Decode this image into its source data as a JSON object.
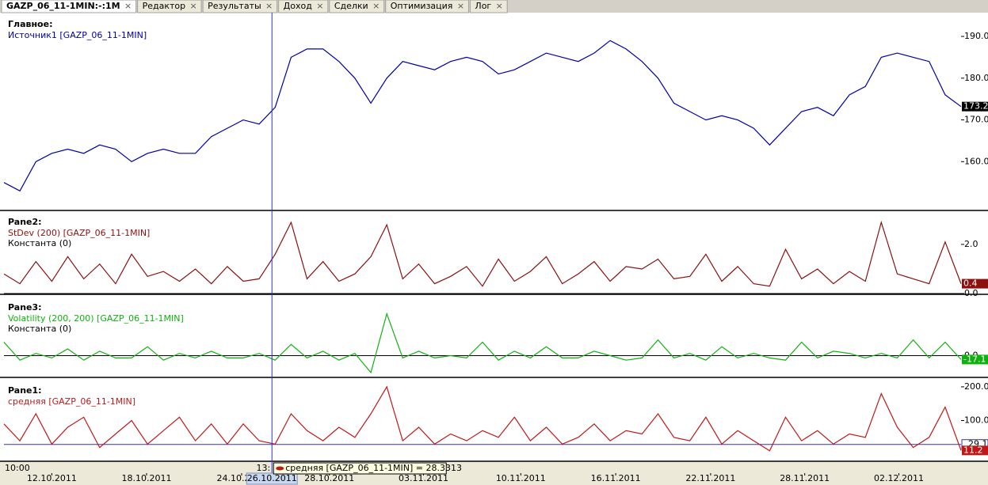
{
  "tabs": [
    "GAZP_06_11-1MIN:-:1M",
    "Редактор",
    "Результаты",
    "Доход",
    "Сделки",
    "Оптимизация",
    "Лог"
  ],
  "chart_data": [
    {
      "type": "line",
      "title": "Главное:",
      "series": [
        {
          "name": "Источник1 [GAZP_06_11-1MIN]",
          "color": "#0000a8",
          "values": [
            155,
            153,
            160,
            162,
            163,
            162,
            164,
            163,
            160,
            162,
            163,
            162,
            162,
            166,
            168,
            170,
            169,
            173,
            185,
            187,
            187,
            184,
            180,
            174,
            180,
            184,
            183,
            182,
            184,
            185,
            184,
            181,
            182,
            184,
            186,
            185,
            184,
            186,
            189,
            187,
            184,
            180,
            174,
            172,
            170,
            171,
            170,
            168,
            164,
            168,
            172,
            173,
            171,
            176,
            178,
            185,
            186,
            185,
            184,
            176,
            173.2
          ]
        }
      ],
      "ylim": [
        148.5,
        195.5
      ],
      "yticks": [
        {
          "value": 160,
          "label": "160.0"
        },
        {
          "value": 170,
          "label": "170.0"
        },
        {
          "value": 180,
          "label": "180.0"
        },
        {
          "value": 190,
          "label": "190.0"
        }
      ],
      "last_value": 173.2,
      "last_color": "#000000"
    },
    {
      "type": "line",
      "title": "Pane2:",
      "series": [
        {
          "name": "StDev (200) [GAZP_06_11-1MIN]",
          "color": "#8b1010",
          "values": [
            0.8,
            0.4,
            1.3,
            0.5,
            1.5,
            0.6,
            1.2,
            0.4,
            1.6,
            0.7,
            0.9,
            0.5,
            1.0,
            0.4,
            1.1,
            0.5,
            0.6,
            1.6,
            2.9,
            0.6,
            1.3,
            0.5,
            0.8,
            1.5,
            2.8,
            0.6,
            1.2,
            0.4,
            0.7,
            1.1,
            0.3,
            1.4,
            0.5,
            0.9,
            1.5,
            0.4,
            0.8,
            1.3,
            0.5,
            1.1,
            1.0,
            1.4,
            0.6,
            0.7,
            1.6,
            0.5,
            1.1,
            0.4,
            0.3,
            1.8,
            0.6,
            1.0,
            0.4,
            0.9,
            0.5,
            2.9,
            0.8,
            0.6,
            0.4,
            2.1,
            0.4
          ]
        }
      ],
      "constant": {
        "name": "Константа (0)",
        "value": 0,
        "color": "#000000"
      },
      "ylim": [
        0,
        3.35
      ],
      "yticks": [
        {
          "value": 0,
          "label": "0.0"
        },
        {
          "value": 2,
          "label": "2.0"
        }
      ],
      "last_value": 0.4,
      "last_color": "#8b1010"
    },
    {
      "type": "line",
      "title": "Pane3:",
      "series": [
        {
          "name": "Volatility (200, 200) [GAZP_06_11-1MIN]",
          "color": "#10b010",
          "values": [
            60,
            -20,
            10,
            -10,
            30,
            -20,
            20,
            -10,
            -10,
            40,
            -20,
            10,
            -10,
            20,
            -10,
            -10,
            10,
            -20,
            50,
            -10,
            20,
            -20,
            10,
            -75,
            186,
            -10,
            20,
            -10,
            0,
            -10,
            60,
            -20,
            20,
            -10,
            40,
            -10,
            -10,
            20,
            0,
            -20,
            -10,
            70,
            -10,
            10,
            -20,
            40,
            -10,
            10,
            -10,
            -20,
            60,
            -10,
            20,
            10,
            -10,
            10,
            -10,
            70,
            -10,
            60,
            -17.1
          ]
        }
      ],
      "constant": {
        "name": "Константа (0)",
        "value": 0,
        "color": "#000000"
      },
      "ylim": [
        -93,
        262
      ],
      "yticks": [
        {
          "value": 0,
          "label": "0.0"
        }
      ],
      "last_value": -17.1,
      "last_color": "#10b010"
    },
    {
      "type": "line",
      "title": "Pane1:",
      "series": [
        {
          "name": "средняя [GAZP_06_11-1MIN]",
          "color": "#c01818",
          "values": [
            90,
            40,
            120,
            30,
            80,
            110,
            20,
            60,
            100,
            30,
            70,
            110,
            40,
            90,
            30,
            90,
            40,
            30,
            120,
            70,
            40,
            80,
            50,
            120,
            200,
            40,
            80,
            30,
            60,
            40,
            70,
            50,
            110,
            40,
            80,
            30,
            50,
            90,
            40,
            70,
            60,
            120,
            50,
            40,
            110,
            30,
            70,
            40,
            10,
            110,
            40,
            70,
            30,
            60,
            50,
            180,
            80,
            20,
            50,
            140,
            11.2
          ]
        }
      ],
      "level": {
        "value": 29.1,
        "color": "#3030c0"
      },
      "ylim": [
        -18.6,
        221
      ],
      "yticks": [
        {
          "value": 100,
          "label": "100.0"
        },
        {
          "value": 200,
          "label": "200.0"
        }
      ],
      "last_value": 11.2,
      "last_color": "#c01818"
    }
  ],
  "x_axis": {
    "xlim": [
      0,
      60
    ],
    "xticks": [
      {
        "value": 3,
        "label": "12.10.2011"
      },
      {
        "value": 8.94,
        "label": "18.10.2011"
      },
      {
        "value": 14.9,
        "label": "24.10.2011"
      },
      {
        "value": 20.4,
        "label": "28.10.2011"
      },
      {
        "value": 26.3,
        "label": "03.11.2011"
      },
      {
        "value": 32.4,
        "label": "10.11.2011"
      },
      {
        "value": 38.35,
        "label": "16.11.2011"
      },
      {
        "value": 44.3,
        "label": "22.11.2011"
      },
      {
        "value": 50.2,
        "label": "28.11.2011"
      },
      {
        "value": 56.1,
        "label": "02.12.2011"
      }
    ],
    "time_label": "10:00",
    "cursor": {
      "value": 16.8,
      "label": "26.10.2011",
      "time_label": "13:"
    }
  },
  "tooltip": "средняя [GAZP_06_11-1MIN] = 28.3313"
}
